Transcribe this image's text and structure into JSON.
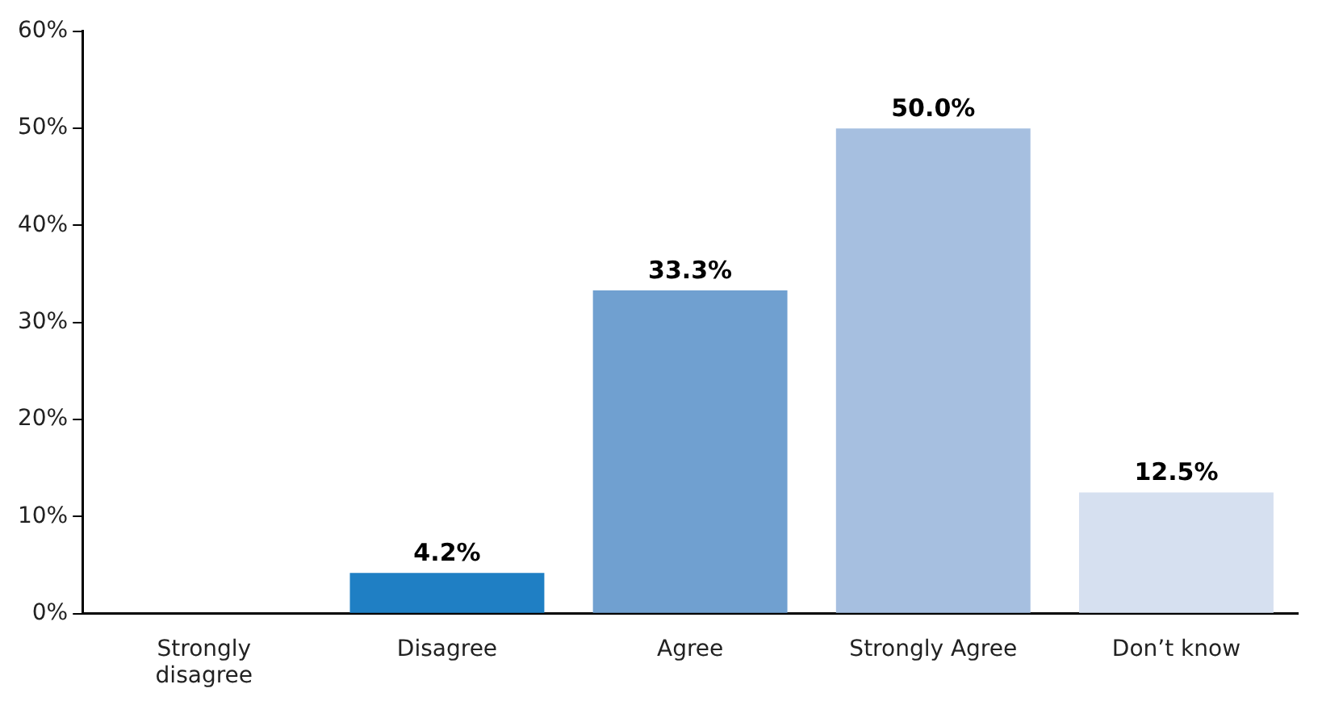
{
  "chart_data": {
    "type": "bar",
    "categories": [
      "Strongly disagree",
      "Disagree",
      "Agree",
      "Strongly Agree",
      "Don’t know"
    ],
    "values": [
      0,
      4.2,
      33.3,
      50.0,
      12.5
    ],
    "colors": [
      "#1f7fc4",
      "#1f7fc4",
      "#70a0d0",
      "#a6bfe0",
      "#d6e0f0"
    ],
    "value_labels": [
      null,
      "4.2%",
      "33.3%",
      "50.0%",
      "12.5%"
    ],
    "ylim": [
      0,
      60
    ],
    "yticks": [
      {
        "value": 0,
        "label": "0%"
      },
      {
        "value": 10,
        "label": "10%"
      },
      {
        "value": 20,
        "label": "20%"
      },
      {
        "value": 30,
        "label": "30%"
      },
      {
        "value": 40,
        "label": "40%"
      },
      {
        "value": 50,
        "label": "50%"
      },
      {
        "value": 60,
        "label": "60%"
      }
    ],
    "grid": false,
    "legend": false
  }
}
